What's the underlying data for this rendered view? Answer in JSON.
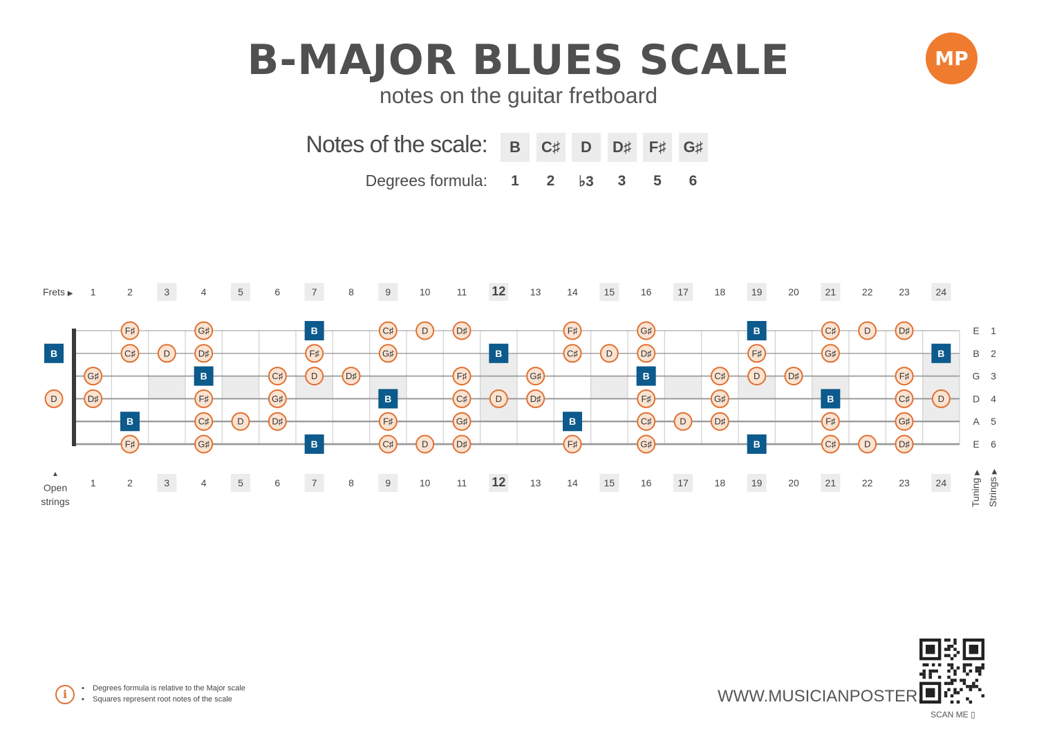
{
  "header": {
    "title": "B-MAJOR BLUES SCALE",
    "subtitle": "notes on the guitar fretboard",
    "logo_text": "MP"
  },
  "scale": {
    "notes_label": "Notes of the scale:",
    "degrees_label": "Degrees formula:",
    "notes": [
      "B",
      "C♯",
      "D",
      "D♯",
      "F♯",
      "G♯"
    ],
    "degrees": [
      "1",
      "2",
      "♭3",
      "3",
      "5",
      "6"
    ]
  },
  "fretboard": {
    "frets_label": "Frets",
    "open_label_1": "Open",
    "open_label_2": "strings",
    "tuning_label": "Tuning",
    "strings_label": "Strings",
    "fret_numbers": [
      "1",
      "2",
      "3",
      "4",
      "5",
      "6",
      "7",
      "8",
      "9",
      "10",
      "11",
      "12",
      "13",
      "14",
      "15",
      "16",
      "17",
      "18",
      "19",
      "20",
      "21",
      "22",
      "23",
      "24"
    ],
    "highlighted_frets": [
      3,
      5,
      7,
      9,
      12,
      15,
      17,
      19,
      21,
      24
    ],
    "tuning": [
      "E",
      "B",
      "G",
      "D",
      "A",
      "E"
    ],
    "string_numbers": [
      "1",
      "2",
      "3",
      "4",
      "5",
      "6"
    ],
    "root_note": "B",
    "strings": [
      {
        "open": "",
        "notes": {
          "2": "F♯",
          "4": "G♯",
          "7": "B",
          "9": "C♯",
          "10": "D",
          "11": "D♯",
          "14": "F♯",
          "16": "G♯",
          "19": "B",
          "21": "C♯",
          "22": "D",
          "23": "D♯"
        }
      },
      {
        "open": "B",
        "notes": {
          "2": "C♯",
          "3": "D",
          "4": "D♯",
          "7": "F♯",
          "9": "G♯",
          "12": "B",
          "14": "C♯",
          "15": "D",
          "16": "D♯",
          "19": "F♯",
          "21": "G♯",
          "24": "B"
        }
      },
      {
        "open": "",
        "notes": {
          "1": "G♯",
          "4": "B",
          "6": "C♯",
          "7": "D",
          "8": "D♯",
          "11": "F♯",
          "13": "G♯",
          "16": "B",
          "18": "C♯",
          "19": "D",
          "20": "D♯",
          "23": "F♯"
        }
      },
      {
        "open": "D",
        "notes": {
          "1": "D♯",
          "4": "F♯",
          "6": "G♯",
          "9": "B",
          "11": "C♯",
          "12": "D",
          "13": "D♯",
          "16": "F♯",
          "18": "G♯",
          "21": "B",
          "23": "C♯",
          "24": "D"
        }
      },
      {
        "open": "",
        "notes": {
          "2": "B",
          "4": "C♯",
          "5": "D",
          "6": "D♯",
          "9": "F♯",
          "11": "G♯",
          "14": "B",
          "16": "C♯",
          "17": "D",
          "18": "D♯",
          "21": "F♯",
          "23": "G♯"
        }
      },
      {
        "open": "",
        "notes": {
          "2": "F♯",
          "4": "G♯",
          "7": "B",
          "9": "C♯",
          "10": "D",
          "11": "D♯",
          "14": "F♯",
          "16": "G♯",
          "19": "B",
          "21": "C♯",
          "22": "D",
          "23": "D♯"
        }
      }
    ]
  },
  "footer": {
    "legend_1": "Degrees formula is relative to the Major scale",
    "legend_2": "Squares represent root notes of the scale",
    "url": "WWW.MUSICIANPOSTER.COM",
    "scan": "SCAN ME"
  },
  "colors": {
    "root_fill": "#0d5a8c",
    "note_fill": "#fbe3d2",
    "note_stroke": "#e07030",
    "fret_shade": "#ececec"
  }
}
